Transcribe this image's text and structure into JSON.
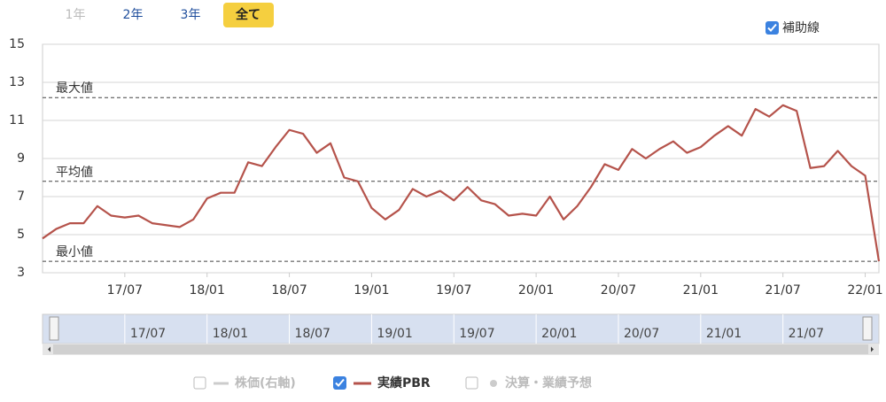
{
  "range_buttons": [
    "1年",
    "2年",
    "3年",
    "全て"
  ],
  "chart_data": {
    "type": "line",
    "x": [
      "17/01",
      "17/02",
      "17/03",
      "17/04",
      "17/05",
      "17/06",
      "17/07",
      "17/08",
      "17/09",
      "17/10",
      "17/11",
      "17/12",
      "18/01",
      "18/02",
      "18/03",
      "18/04",
      "18/05",
      "18/06",
      "18/07",
      "18/08",
      "18/09",
      "18/10",
      "18/11",
      "18/12",
      "19/01",
      "19/02",
      "19/03",
      "19/04",
      "19/05",
      "19/06",
      "19/07",
      "19/08",
      "19/09",
      "19/10",
      "19/11",
      "19/12",
      "20/01",
      "20/02",
      "20/03",
      "20/04",
      "20/05",
      "20/06",
      "20/07",
      "20/08",
      "20/09",
      "20/10",
      "20/11",
      "20/12",
      "21/01",
      "21/02",
      "21/03",
      "21/04",
      "21/05",
      "21/06",
      "21/07",
      "21/08",
      "21/09",
      "21/10",
      "21/11",
      "21/12",
      "22/01",
      "22/02"
    ],
    "series": [
      {
        "name": "実績PBR",
        "color": "#b5534b",
        "values": [
          4.8,
          5.3,
          5.6,
          5.6,
          6.5,
          6.0,
          5.9,
          6.0,
          5.6,
          5.5,
          5.4,
          5.8,
          6.9,
          7.2,
          7.2,
          8.8,
          8.6,
          9.6,
          10.5,
          10.3,
          9.3,
          9.8,
          8.0,
          7.8,
          6.4,
          5.8,
          6.3,
          7.4,
          7.0,
          7.3,
          6.8,
          7.5,
          6.8,
          6.6,
          6.0,
          6.1,
          6.0,
          7.0,
          5.8,
          6.5,
          7.5,
          8.7,
          8.4,
          9.5,
          9.0,
          9.5,
          9.9,
          9.3,
          9.6,
          10.2,
          10.7,
          10.2,
          11.6,
          11.2,
          11.8,
          11.5,
          8.5,
          8.6,
          9.4,
          8.6,
          8.1,
          3.6
        ]
      }
    ],
    "inactive_series": [
      "株価(右軸)",
      "決算・業績予想"
    ],
    "ylim": [
      3,
      15
    ],
    "yticks": [
      3,
      5,
      7,
      9,
      11,
      13,
      15
    ],
    "xticks": [
      "17/07",
      "18/01",
      "18/07",
      "19/01",
      "19/07",
      "20/01",
      "20/07",
      "21/01",
      "21/07",
      "22/01"
    ],
    "grid": true,
    "reference_toggle": "補助線",
    "reference_lines": [
      {
        "label": "最大値",
        "value": 12.2
      },
      {
        "label": "平均値",
        "value": 7.8
      },
      {
        "label": "最小値",
        "value": 3.6
      }
    ]
  }
}
